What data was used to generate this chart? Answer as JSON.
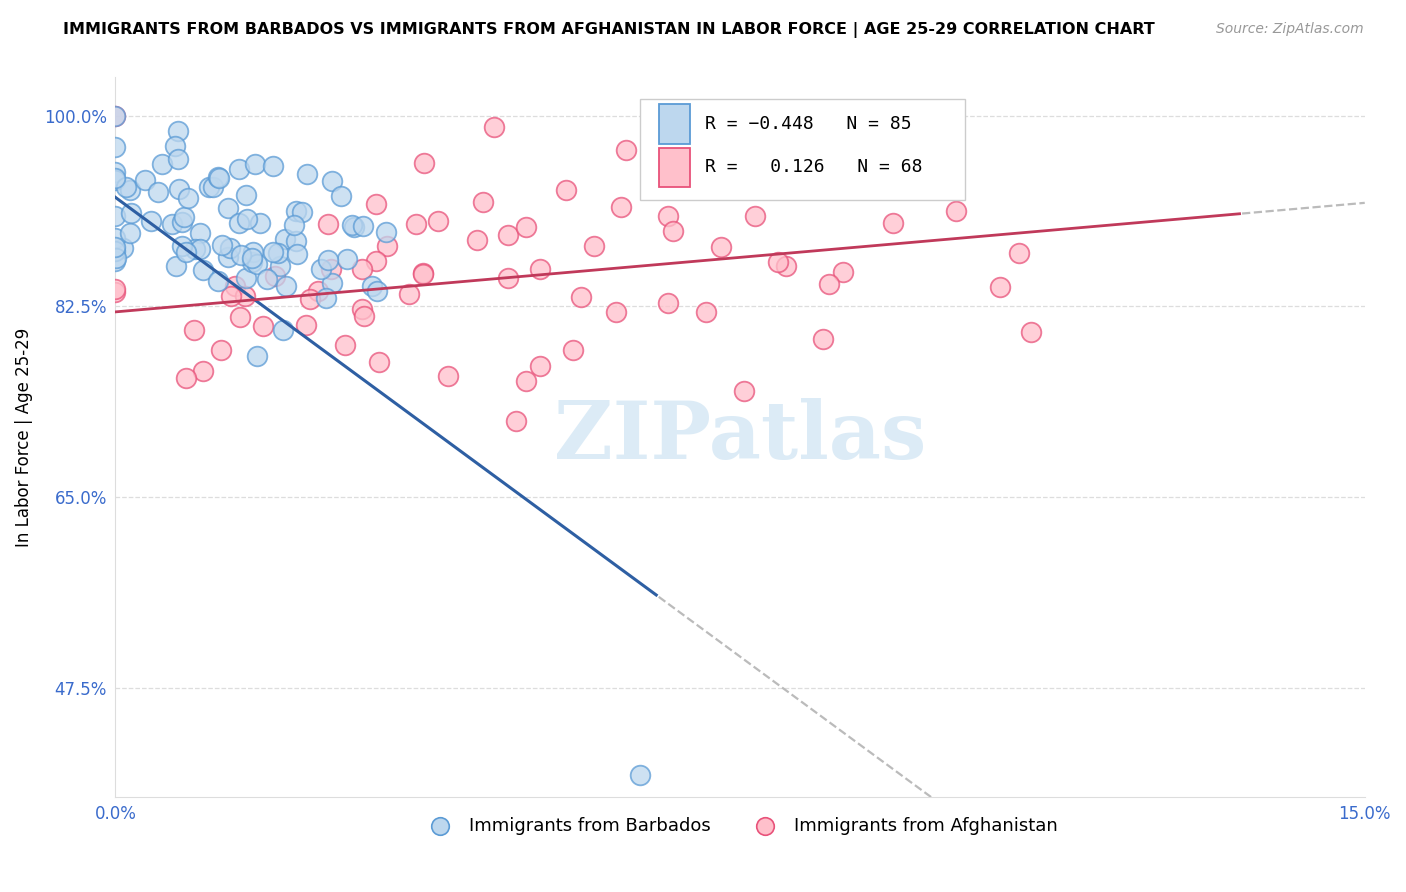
{
  "title": "IMMIGRANTS FROM BARBADOS VS IMMIGRANTS FROM AFGHANISTAN IN LABOR FORCE | AGE 25-29 CORRELATION CHART",
  "source_text": "Source: ZipAtlas.com",
  "ylabel_label": "In Labor Force | Age 25-29",
  "xlim": [
    0.0,
    0.15
  ],
  "ylim": [
    0.375,
    1.035
  ],
  "ytick_positions": [
    0.475,
    0.65,
    0.825,
    1.0
  ],
  "xtick_positions": [
    0.0,
    0.15
  ],
  "ytick_labels": [
    "47.5%",
    "65.0%",
    "82.5%",
    "100.0%"
  ],
  "xtick_labels": [
    "0.0%",
    "15.0%"
  ],
  "barbados_R": -0.448,
  "barbados_N": 85,
  "afghanistan_R": 0.126,
  "afghanistan_N": 68,
  "barbados_color_edge": "#5b9bd5",
  "barbados_color_face": "#bdd7ee",
  "afghanistan_color_edge": "#e8527a",
  "afghanistan_color_face": "#ffc0cb",
  "trend_barbados_color": "#2e5fa3",
  "trend_afghanistan_color": "#c0395a",
  "watermark": "ZIPatlas",
  "watermark_color": "#d6e8f5",
  "dashed_color": "#bbbbbb",
  "grid_color": "#dddddd",
  "tick_color": "#3a6bcc",
  "title_fontsize": 11.5,
  "source_fontsize": 10,
  "axis_fontsize": 12,
  "ylabel_fontsize": 12
}
